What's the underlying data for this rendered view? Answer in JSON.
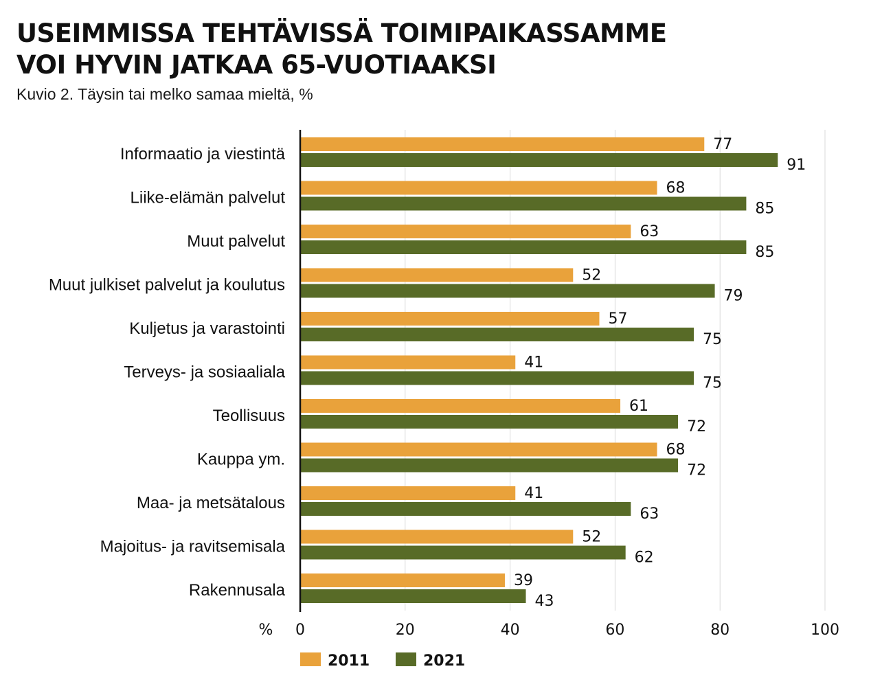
{
  "header": {
    "title_line1": "USEIMMISSA TEHTÄVISSÄ TOIMIPAIKASSAMME",
    "title_line2": "VOI HYVIN JATKAA 65-VUOTIAAKSI",
    "subtitle": "Kuvio 2. Täysin tai melko samaa mieltä, %"
  },
  "chart_data": {
    "type": "bar",
    "orientation": "horizontal",
    "title": "USEIMMISSA TEHTÄVISSÄ TOIMIPAIKASSAMME VOI HYVIN JATKAA 65-VUOTIAAKSI",
    "subtitle": "Kuvio 2. Täysin tai melko samaa mieltä, %",
    "xlabel": "%",
    "xlim": [
      0,
      100
    ],
    "xticks": [
      0,
      20,
      40,
      60,
      80,
      100
    ],
    "grid": true,
    "legend_position": "bottom-left",
    "categories": [
      "Informaatio ja viestintä",
      "Liike-elämän palvelut",
      "Muut palvelut",
      "Muut julkiset palvelut ja koulutus",
      "Kuljetus ja varastointi",
      "Terveys- ja sosiaaliala",
      "Teollisuus",
      "Kauppa ym.",
      "Maa- ja metsätalous",
      "Majoitus- ja ravitsemisala",
      "Rakennusala"
    ],
    "series": [
      {
        "name": "2011",
        "color": "#E9A23B",
        "values": [
          77,
          68,
          63,
          52,
          57,
          41,
          61,
          68,
          41,
          52,
          39
        ]
      },
      {
        "name": "2021",
        "color": "#586B27",
        "values": [
          91,
          85,
          85,
          79,
          75,
          75,
          72,
          72,
          63,
          62,
          43
        ]
      }
    ]
  }
}
